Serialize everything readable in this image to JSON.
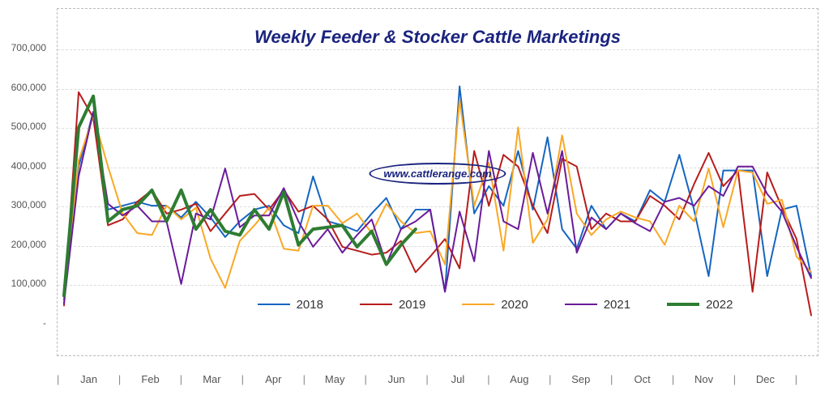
{
  "title": "Weekly Feeder & Stocker Cattle Marketings",
  "title_fontsize": 22,
  "title_color": "#1a237e",
  "watermark_text": "www.cattlerange.com",
  "background_color": "#ffffff",
  "grid_color": "#dddddd",
  "border_style": "dashed",
  "ylim": [
    0,
    700000
  ],
  "ytick_step": 100000,
  "yticks": [
    "-",
    "100,000",
    "200,000",
    "300,000",
    "400,000",
    "500,000",
    "600,000",
    "700,000"
  ],
  "x_labels": [
    "Jan",
    "Feb",
    "Mar",
    "Apr",
    "May",
    "Jun",
    "Jul",
    "Aug",
    "Sep",
    "Oct",
    "Nov",
    "Dec"
  ],
  "x_separator": "|",
  "axis_font_color": "#555555",
  "weeks_per_year": 52,
  "series": [
    {
      "name": "2018",
      "color": "#1565c0",
      "line_width": 2,
      "values": [
        60000,
        400000,
        540000,
        290000,
        300000,
        310000,
        300000,
        300000,
        270000,
        310000,
        270000,
        220000,
        260000,
        290000,
        300000,
        250000,
        230000,
        375000,
        260000,
        250000,
        235000,
        280000,
        320000,
        240000,
        290000,
        290000,
        80000,
        605000,
        280000,
        350000,
        300000,
        440000,
        290000,
        475000,
        240000,
        190000,
        300000,
        240000,
        280000,
        260000,
        340000,
        310000,
        430000,
        290000,
        120000,
        390000,
        390000,
        390000,
        120000,
        290000,
        300000,
        120000
      ]
    },
    {
      "name": "2019",
      "color": "#b71c1c",
      "line_width": 2,
      "values": [
        45000,
        590000,
        525000,
        250000,
        265000,
        310000,
        340000,
        280000,
        290000,
        305000,
        235000,
        280000,
        325000,
        330000,
        290000,
        340000,
        285000,
        300000,
        265000,
        195000,
        185000,
        175000,
        180000,
        210000,
        130000,
        170000,
        215000,
        140000,
        440000,
        300000,
        430000,
        400000,
        300000,
        230000,
        420000,
        400000,
        240000,
        280000,
        260000,
        260000,
        325000,
        300000,
        265000,
        355000,
        435000,
        350000,
        390000,
        80000,
        385000,
        295000,
        215000,
        20000
      ]
    },
    {
      "name": "2020",
      "color": "#f9a825",
      "line_width": 2,
      "values": [
        70000,
        415000,
        530000,
        400000,
        280000,
        230000,
        225000,
        300000,
        265000,
        295000,
        165000,
        90000,
        210000,
        250000,
        295000,
        190000,
        185000,
        300000,
        300000,
        255000,
        280000,
        230000,
        305000,
        260000,
        230000,
        235000,
        150000,
        570000,
        300000,
        410000,
        185000,
        500000,
        205000,
        265000,
        480000,
        280000,
        225000,
        265000,
        285000,
        270000,
        260000,
        200000,
        300000,
        260000,
        395000,
        245000,
        390000,
        385000,
        305000,
        315000,
        170000,
        130000
      ]
    },
    {
      "name": "2021",
      "color": "#6a1b9a",
      "line_width": 2,
      "values": [
        50000,
        375000,
        540000,
        305000,
        275000,
        300000,
        260000,
        260000,
        100000,
        280000,
        265000,
        395000,
        245000,
        275000,
        275000,
        345000,
        260000,
        195000,
        240000,
        180000,
        225000,
        265000,
        150000,
        240000,
        260000,
        290000,
        80000,
        285000,
        158000,
        440000,
        260000,
        240000,
        435000,
        280000,
        440000,
        180000,
        270000,
        240000,
        280000,
        255000,
        235000,
        310000,
        320000,
        300000,
        350000,
        325000,
        400000,
        400000,
        330000,
        285000,
        195000,
        115000
      ]
    },
    {
      "name": "2022",
      "color": "#2e7d32",
      "line_width": 4,
      "values": [
        70000,
        500000,
        580000,
        260000,
        290000,
        300000,
        340000,
        260000,
        340000,
        240000,
        290000,
        235000,
        225000,
        290000,
        240000,
        335000,
        200000,
        240000,
        245000,
        250000,
        195000,
        235000,
        150000,
        200000,
        240000
      ]
    }
  ],
  "legend_items": [
    {
      "label": "2018",
      "color": "#1565c0",
      "width": 2
    },
    {
      "label": "2019",
      "color": "#b71c1c",
      "width": 2
    },
    {
      "label": "2020",
      "color": "#f9a825",
      "width": 2
    },
    {
      "label": "2021",
      "color": "#6a1b9a",
      "width": 2
    },
    {
      "label": "2022",
      "color": "#2e7d32",
      "width": 4
    }
  ]
}
